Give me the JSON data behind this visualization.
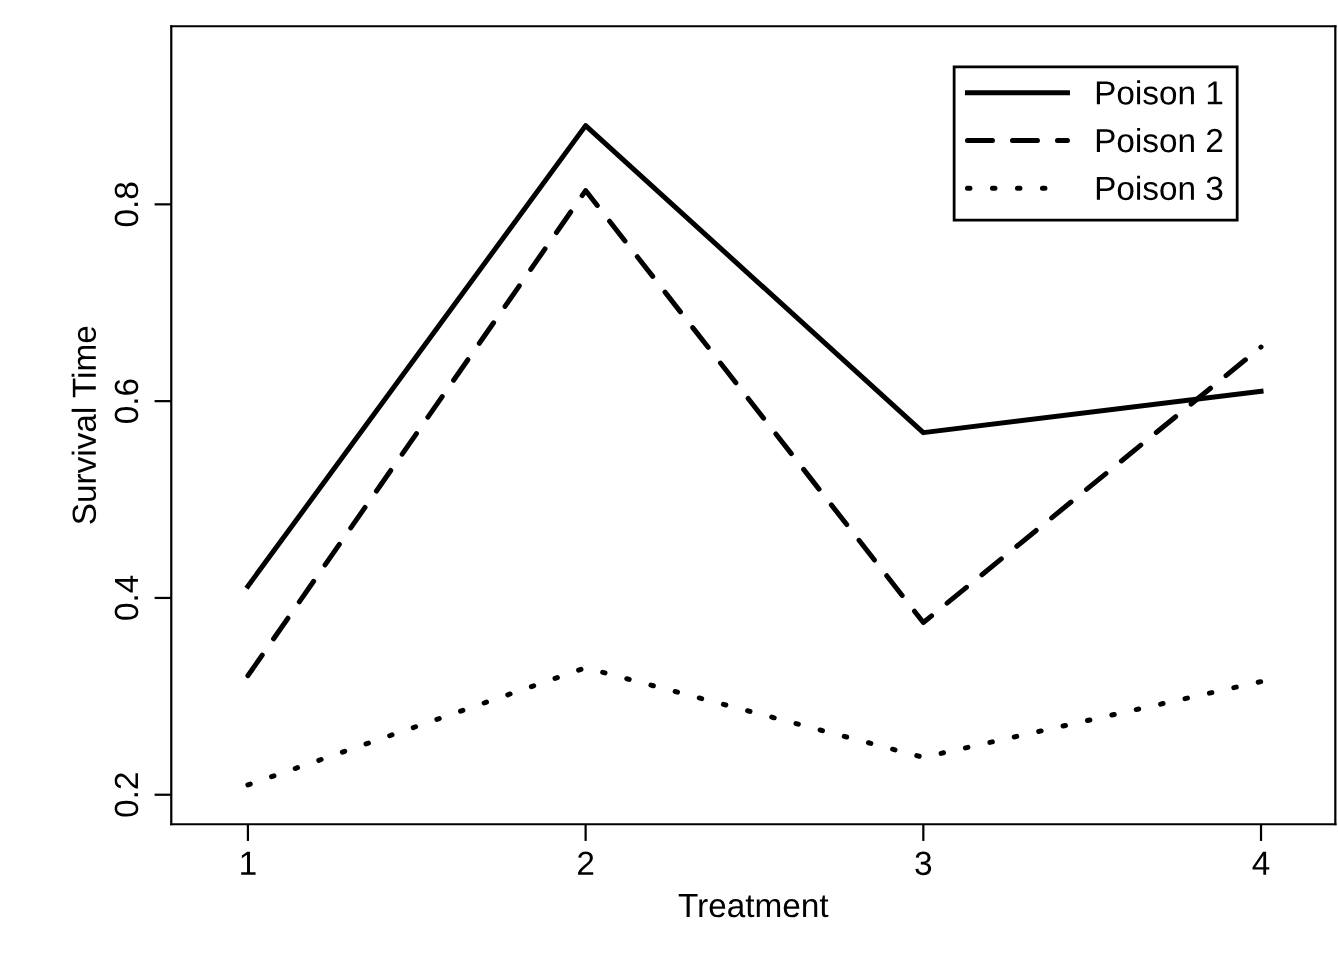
{
  "chart_data": {
    "type": "line",
    "xlabel": "Treatment",
    "ylabel": "Survival Time",
    "x": [
      1,
      2,
      3,
      4
    ],
    "xlim": [
      0.773,
      4.22
    ],
    "xticks": [
      1,
      2,
      3,
      4
    ],
    "ylim": [
      0.17,
      0.981
    ],
    "yticks": [
      0.2,
      0.4,
      0.6,
      0.8
    ],
    "grid": false,
    "legend": "top right",
    "marker": "none",
    "series": [
      {
        "name": "Poison 1",
        "color": "#000000",
        "line_style": "solid",
        "values": [
          0.412,
          0.88,
          0.568,
          0.61
        ]
      },
      {
        "name": "Poison 2",
        "color": "#000000",
        "line_style": "dashed",
        "values": [
          0.321,
          0.814,
          0.375,
          0.655
        ]
      },
      {
        "name": "Poison 3",
        "color": "#000000",
        "line_style": "dotted",
        "values": [
          0.21,
          0.329,
          0.238,
          0.315
        ]
      }
    ]
  }
}
